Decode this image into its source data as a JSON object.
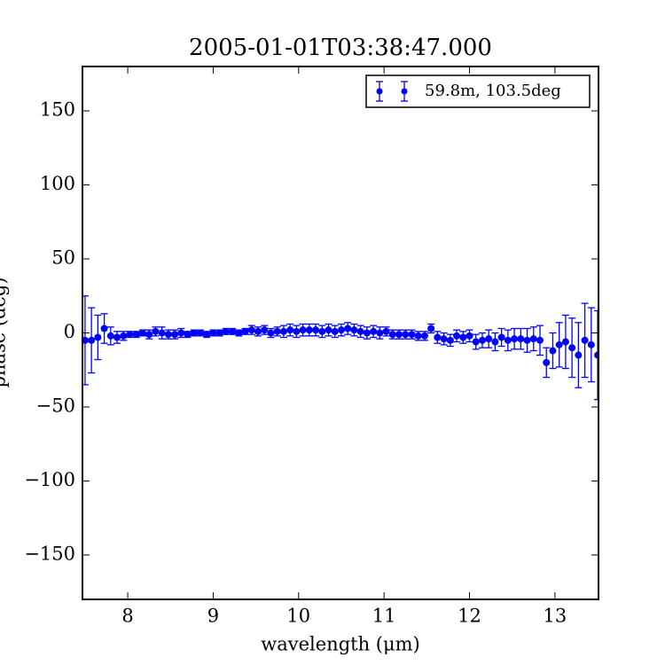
{
  "chart_data": {
    "type": "errorbar",
    "title": "2005-01-01T03:38:47.000",
    "xlabel": "wavelength (μm)",
    "ylabel": "phase (deg)",
    "x": [
      7.5,
      7.575,
      7.65,
      7.725,
      7.8,
      7.875,
      7.95,
      8.025,
      8.1,
      8.175,
      8.25,
      8.325,
      8.4,
      8.475,
      8.55,
      8.625,
      8.7,
      8.775,
      8.85,
      8.925,
      9.0,
      9.075,
      9.15,
      9.225,
      9.3,
      9.375,
      9.45,
      9.525,
      9.6,
      9.675,
      9.75,
      9.825,
      9.9,
      9.975,
      10.05,
      10.125,
      10.2,
      10.275,
      10.35,
      10.425,
      10.5,
      10.575,
      10.65,
      10.725,
      10.8,
      10.875,
      10.95,
      11.025,
      11.1,
      11.175,
      11.25,
      11.325,
      11.4,
      11.475,
      11.55,
      11.625,
      11.7,
      11.775,
      11.85,
      11.925,
      12.0,
      12.075,
      12.15,
      12.225,
      12.3,
      12.375,
      12.45,
      12.525,
      12.6,
      12.675,
      12.75,
      12.825,
      12.9,
      12.975,
      13.05,
      13.125,
      13.2,
      13.275,
      13.35,
      13.425,
      13.5
    ],
    "series": [
      {
        "name": "59.8m, 103.5deg",
        "color": "#0000ff",
        "values": [
          -5,
          -5,
          -3,
          3,
          -2,
          -3,
          -2,
          -1,
          -1,
          0,
          -1,
          1,
          0,
          -1,
          -1,
          0,
          -1,
          0,
          0,
          -1,
          0,
          0,
          1,
          1,
          0,
          1,
          2,
          1,
          2,
          0,
          1,
          1,
          2,
          1,
          2,
          2,
          2,
          1,
          2,
          1,
          2,
          3,
          2,
          1,
          0,
          1,
          0,
          1,
          -1,
          -1,
          -1,
          -1,
          -2,
          -2,
          3,
          -3,
          -4,
          -5,
          -2,
          -3,
          -2,
          -6,
          -5,
          -4,
          -6,
          -3,
          -5,
          -4,
          -4,
          -5,
          -4,
          -5,
          -20,
          -12,
          -8,
          -6,
          -10,
          -15,
          -5,
          -8,
          -15
        ],
        "errors": [
          30,
          22,
          15,
          10,
          6,
          4,
          3,
          2,
          2,
          2,
          3,
          3,
          4,
          3,
          3,
          3,
          2,
          2,
          2,
          2,
          2,
          2,
          2,
          2,
          2,
          2,
          3,
          3,
          3,
          3,
          3,
          4,
          4,
          4,
          4,
          4,
          4,
          4,
          4,
          4,
          4,
          4,
          4,
          4,
          4,
          4,
          4,
          3,
          3,
          3,
          3,
          3,
          3,
          3,
          3,
          4,
          4,
          4,
          4,
          4,
          4,
          5,
          5,
          6,
          6,
          6,
          7,
          7,
          7,
          8,
          8,
          10,
          10,
          12,
          15,
          18,
          20,
          22,
          25,
          25,
          30
        ]
      }
    ],
    "xlim": [
      7.47,
      13.51
    ],
    "ylim": [
      -180,
      180
    ],
    "xticks": [
      8,
      9,
      10,
      11,
      12,
      13
    ],
    "yticks": [
      {
        "value": -150,
        "label": "−150"
      },
      {
        "value": -100,
        "label": "−100"
      },
      {
        "value": -50,
        "label": "−50"
      },
      0,
      50,
      100,
      150
    ],
    "legend": "upper right"
  }
}
